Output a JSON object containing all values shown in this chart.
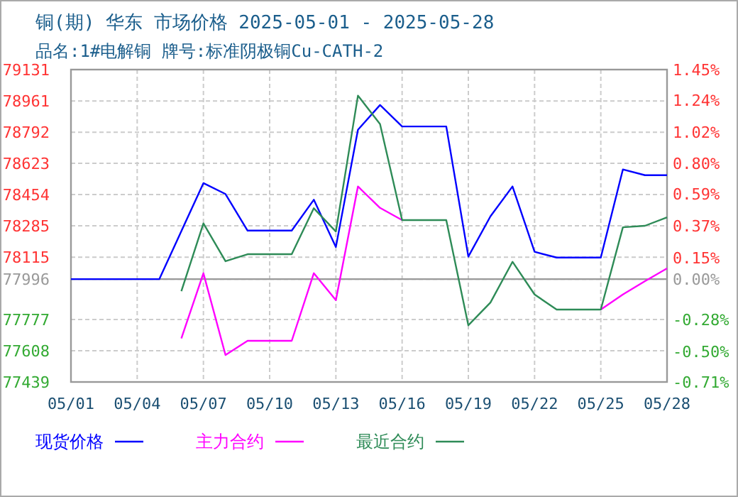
{
  "chart_data": {
    "type": "line",
    "title": "铜(期) 华东 市场价格 2025-05-01 - 2025-05-28",
    "subtitle": "品名:1#电解铜 牌号:标准阴极铜Cu-CATH-2",
    "series": [
      {
        "name": "现货价格",
        "color": "#0000ff",
        "x": [
          "2025-05-01",
          "2025-05-05",
          "2025-05-07",
          "2025-05-08",
          "2025-05-09",
          "2025-05-11",
          "2025-05-12",
          "2025-05-13",
          "2025-05-14",
          "2025-05-15",
          "2025-05-16",
          "2025-05-18",
          "2025-05-19",
          "2025-05-20",
          "2025-05-21",
          "2025-05-22",
          "2025-05-23",
          "2025-05-25",
          "2025-05-26",
          "2025-05-27",
          "2025-05-28"
        ],
        "values": [
          77996,
          77996,
          78516,
          78457,
          78259,
          78259,
          78426,
          78170,
          78805,
          78939,
          78823,
          78823,
          78118,
          78336,
          78498,
          78144,
          78113,
          78113,
          78590,
          78559,
          78559
        ]
      },
      {
        "name": "主力合约",
        "color": "#ff00ff",
        "x": [
          "2025-05-06",
          "2025-05-07",
          "2025-05-08",
          "2025-05-09",
          "2025-05-11",
          "2025-05-12",
          "2025-05-13",
          "2025-05-14",
          "2025-05-15",
          "2025-05-16",
          "2025-05-17",
          "2025-05-24",
          "2025-05-25",
          "2025-05-26",
          "2025-05-27",
          "2025-05-28"
        ],
        "values": [
          77675,
          78028,
          77585,
          77662,
          77662,
          78028,
          77882,
          78498,
          78382,
          78316,
          null,
          null,
          77831,
          77913,
          77985,
          78054
        ]
      },
      {
        "name": "最近合约",
        "color": "#2e8b57",
        "x": [
          "2025-05-06",
          "2025-05-07",
          "2025-05-08",
          "2025-05-09",
          "2025-05-11",
          "2025-05-12",
          "2025-05-13",
          "2025-05-14",
          "2025-05-15",
          "2025-05-16",
          "2025-05-18",
          "2025-05-19",
          "2025-05-20",
          "2025-05-21",
          "2025-05-22",
          "2025-05-23",
          "2025-05-25",
          "2025-05-26",
          "2025-05-27",
          "2025-05-28"
        ],
        "values": [
          77931,
          78298,
          78093,
          78131,
          78131,
          78380,
          78254,
          78990,
          78836,
          78316,
          78316,
          77746,
          77869,
          78090,
          77913,
          77831,
          77831,
          78277,
          78285,
          78331
        ]
      }
    ],
    "xlim": [
      "2025-05-01",
      "2025-05-28"
    ],
    "xticks": [
      {
        "value": "2025-05-01",
        "label": "05/01"
      },
      {
        "value": "2025-05-04",
        "label": "05/04"
      },
      {
        "value": "2025-05-07",
        "label": "05/07"
      },
      {
        "value": "2025-05-10",
        "label": "05/10"
      },
      {
        "value": "2025-05-13",
        "label": "05/13"
      },
      {
        "value": "2025-05-16",
        "label": "05/16"
      },
      {
        "value": "2025-05-19",
        "label": "05/19"
      },
      {
        "value": "2025-05-22",
        "label": "05/22"
      },
      {
        "value": "2025-05-25",
        "label": "05/25"
      },
      {
        "value": "2025-05-28",
        "label": "05/28"
      }
    ],
    "ylim": [
      77439,
      79131
    ],
    "yticks": [
      77439,
      77608,
      77777,
      77996,
      78115,
      78285,
      78454,
      78623,
      78792,
      78961,
      79131
    ],
    "y2lim": [
      -0.71,
      1.45
    ],
    "y2ticks": [
      {
        "value": -0.71,
        "label": "-0.71%"
      },
      {
        "value": -0.5,
        "label": "-0.50%"
      },
      {
        "value": -0.28,
        "label": "-0.28%"
      },
      {
        "value": 0,
        "label": "0.00%"
      },
      {
        "value": 0.15,
        "label": "0.15%"
      },
      {
        "value": 0.37,
        "label": "0.37%"
      },
      {
        "value": 0.59,
        "label": "0.59%"
      },
      {
        "value": 0.8,
        "label": "0.80%"
      },
      {
        "value": 1.02,
        "label": "1.02%"
      },
      {
        "value": 1.24,
        "label": "1.24%"
      },
      {
        "value": 1.45,
        "label": "1.45%"
      }
    ],
    "ref_lines": [
      {
        "axis": "y",
        "value": 77996,
        "color": "#999999"
      }
    ],
    "grid": true,
    "legend": "bottom"
  }
}
